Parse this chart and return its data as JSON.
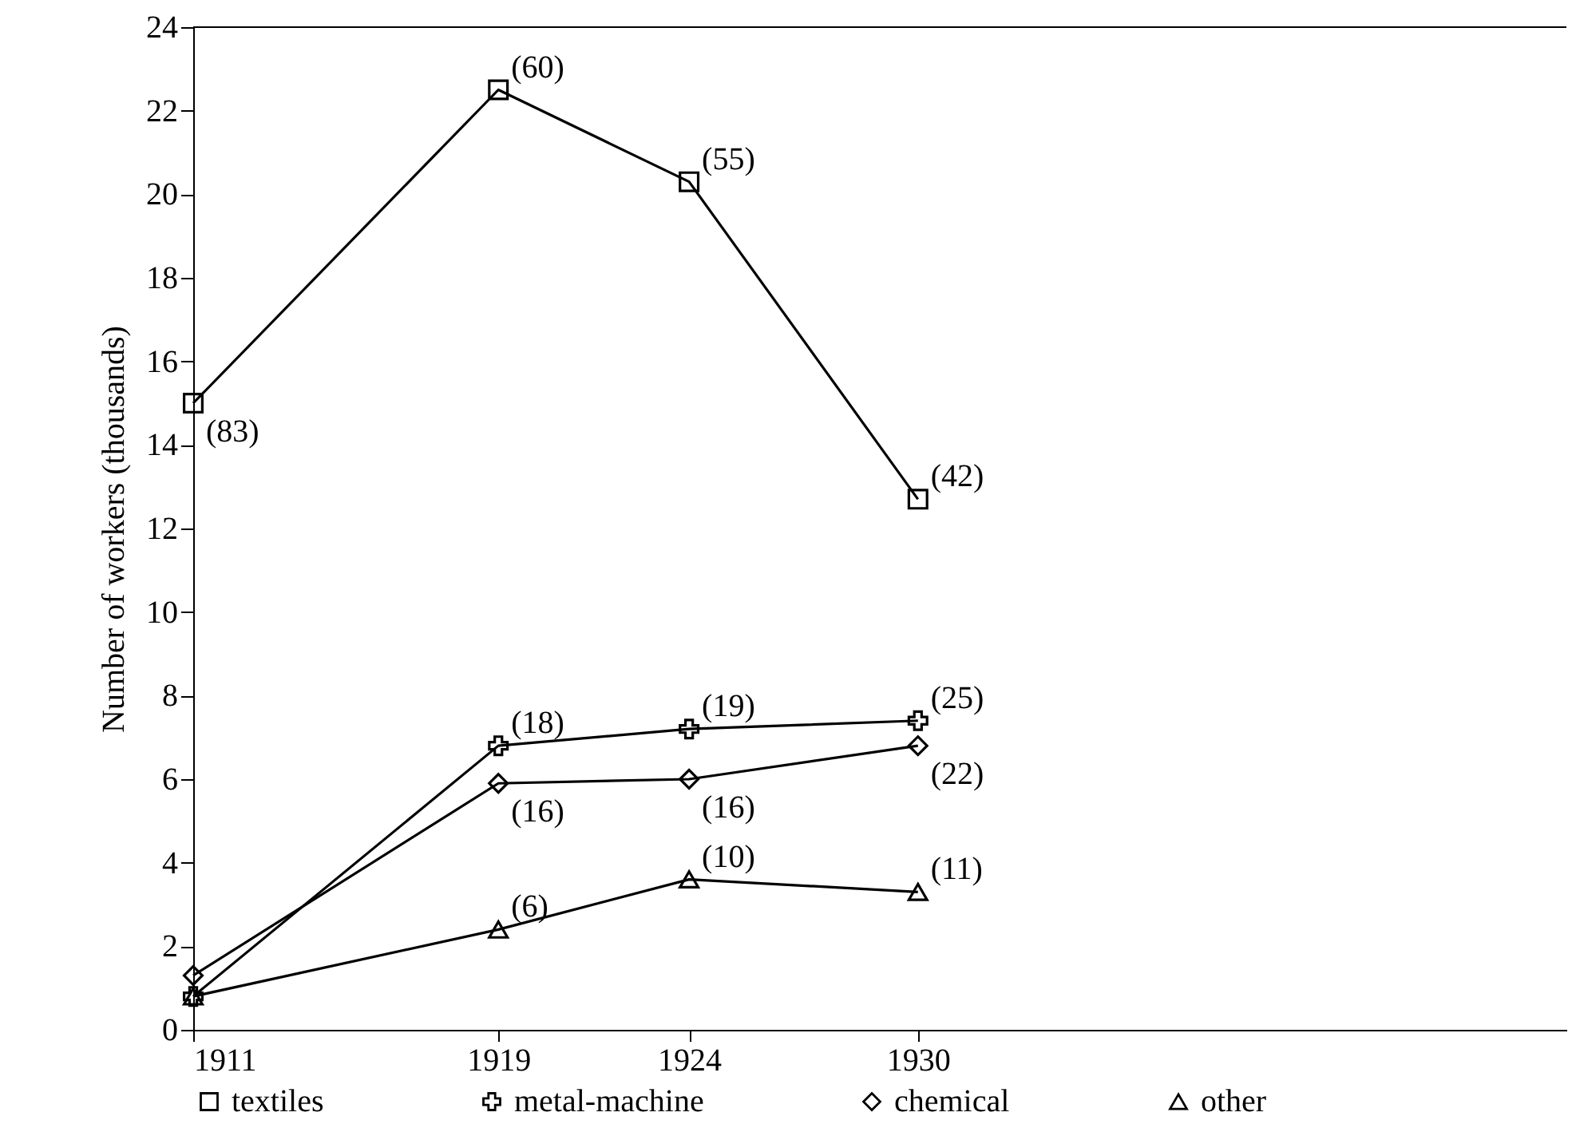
{
  "chart_data": {
    "type": "line",
    "ylabel": "Number of workers (thousands)",
    "x": [
      1911,
      1919,
      1924,
      1930
    ],
    "xlim": [
      1911,
      1947
    ],
    "xticks": [
      1911,
      1919,
      1924,
      1930
    ],
    "ylim": [
      0,
      24
    ],
    "yticks": [
      0,
      2,
      4,
      6,
      8,
      10,
      12,
      14,
      16,
      18,
      20,
      22,
      24
    ],
    "legend": "bottom",
    "line_style": "solid",
    "grid": false,
    "series": [
      {
        "name": "textiles",
        "color": "#000000",
        "marker": "square",
        "values": [
          15,
          22.5,
          20.3,
          12.7
        ]
      },
      {
        "name": "metal-machine",
        "color": "#000000",
        "marker": "cross",
        "values": [
          0.8,
          6.8,
          7.2,
          7.4
        ]
      },
      {
        "name": "chemical",
        "color": "#000000",
        "marker": "diamond",
        "values": [
          1.3,
          5.9,
          6.0,
          6.8
        ]
      },
      {
        "name": "other",
        "color": "#000000",
        "marker": "triangle",
        "values": [
          0.8,
          2.4,
          3.6,
          3.3
        ]
      }
    ],
    "annotations": [
      {
        "text": "(83)",
        "x": 1911,
        "y": 15
      },
      {
        "text": "(60)",
        "x": 1919,
        "y": 22.5
      },
      {
        "text": "(55)",
        "x": 1924,
        "y": 20.3
      },
      {
        "text": "(42)",
        "x": 1930,
        "y": 12.7
      },
      {
        "text": "(18)",
        "x": 1919,
        "y": 6.8
      },
      {
        "text": "(19)",
        "x": 1924,
        "y": 7.2
      },
      {
        "text": "(25)",
        "x": 1930,
        "y": 7.4
      },
      {
        "text": "(16)",
        "x": 1919,
        "y": 5.9
      },
      {
        "text": "(16)",
        "x": 1924,
        "y": 6.0
      },
      {
        "text": "(22)",
        "x": 1930,
        "y": 6.8
      },
      {
        "text": "(6)",
        "x": 1919,
        "y": 2.4
      },
      {
        "text": "(10)",
        "x": 1924,
        "y": 3.6
      },
      {
        "text": "(11)",
        "x": 1930,
        "y": 3.3
      }
    ]
  }
}
